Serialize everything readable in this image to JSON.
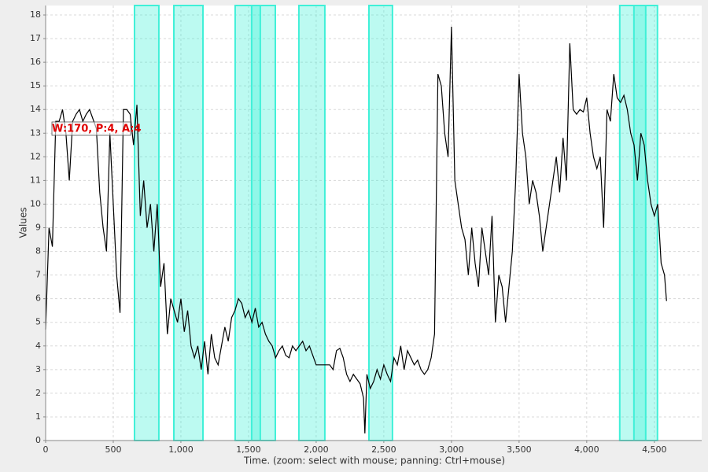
{
  "chart_data": {
    "type": "line",
    "x_label": "Time. (zoom: select with mouse; panning: Ctrl+mouse)",
    "y_label": "Values",
    "annotation": "W:170, P:4, A:4",
    "color": "#000000",
    "highlight_color": "#40f0d8",
    "highlight_ranges": [
      [
        657,
        837
      ],
      [
        948,
        1163
      ],
      [
        1401,
        1587
      ],
      [
        1523,
        1698
      ],
      [
        1872,
        2064
      ],
      [
        2390,
        2564
      ],
      [
        4244,
        4436
      ],
      [
        4349,
        4523
      ]
    ],
    "x": [
      0,
      25,
      50,
      75,
      100,
      125,
      150,
      175,
      200,
      225,
      250,
      275,
      300,
      325,
      350,
      375,
      400,
      425,
      450,
      475,
      500,
      525,
      550,
      575,
      600,
      625,
      650,
      675,
      700,
      725,
      750,
      775,
      800,
      825,
      850,
      875,
      900,
      925,
      950,
      975,
      1000,
      1025,
      1050,
      1075,
      1100,
      1125,
      1150,
      1175,
      1200,
      1225,
      1250,
      1275,
      1300,
      1325,
      1350,
      1375,
      1400,
      1425,
      1450,
      1475,
      1500,
      1525,
      1550,
      1575,
      1600,
      1625,
      1650,
      1675,
      1700,
      1725,
      1750,
      1775,
      1800,
      1825,
      1850,
      1875,
      1900,
      1925,
      1950,
      1975,
      2000,
      2025,
      2050,
      2075,
      2100,
      2125,
      2150,
      2175,
      2200,
      2225,
      2250,
      2275,
      2300,
      2325,
      2350,
      2360,
      2375,
      2400,
      2425,
      2450,
      2475,
      2500,
      2525,
      2550,
      2575,
      2600,
      2625,
      2650,
      2675,
      2700,
      2725,
      2750,
      2775,
      2800,
      2825,
      2850,
      2875,
      2900,
      2925,
      2950,
      2975,
      3000,
      3025,
      3050,
      3075,
      3100,
      3125,
      3150,
      3175,
      3200,
      3225,
      3250,
      3275,
      3300,
      3325,
      3350,
      3375,
      3400,
      3425,
      3450,
      3475,
      3500,
      3525,
      3550,
      3575,
      3600,
      3625,
      3650,
      3675,
      3700,
      3725,
      3750,
      3775,
      3800,
      3825,
      3850,
      3875,
      3900,
      3925,
      3950,
      3975,
      4000,
      4025,
      4050,
      4075,
      4100,
      4125,
      4150,
      4175,
      4200,
      4225,
      4250,
      4275,
      4300,
      4325,
      4350,
      4375,
      4400,
      4425,
      4450,
      4475,
      4500,
      4525,
      4550,
      4575,
      4590
    ],
    "values": [
      4.7,
      9,
      8.2,
      13.5,
      13.5,
      14,
      13,
      11,
      13.5,
      13.8,
      14,
      13.5,
      13.8,
      14,
      13.6,
      13.2,
      10.5,
      9,
      8,
      13,
      10,
      7,
      5.4,
      14,
      14,
      13.8,
      12.5,
      14.2,
      9.5,
      11,
      9,
      10,
      8,
      10,
      6.5,
      7.5,
      4.5,
      6,
      5.5,
      5,
      6,
      4.6,
      5.5,
      4,
      3.5,
      4,
      3,
      4.2,
      2.8,
      4.5,
      3.5,
      3.2,
      4,
      4.8,
      4.2,
      5.2,
      5.5,
      6,
      5.8,
      5.2,
      5.5,
      5,
      5.6,
      4.8,
      5,
      4.5,
      4.2,
      4,
      3.5,
      3.8,
      4,
      3.6,
      3.5,
      4,
      3.8,
      4,
      4.2,
      3.8,
      4,
      3.6,
      3.2,
      3.2,
      3.2,
      3.2,
      3.2,
      3,
      3.8,
      3.9,
      3.5,
      2.8,
      2.5,
      2.8,
      2.6,
      2.4,
      1.8,
      0.3,
      2.8,
      2.2,
      2.5,
      3,
      2.6,
      3.2,
      2.8,
      2.5,
      3.5,
      3.2,
      4,
      3,
      3.8,
      3.5,
      3.2,
      3.4,
      3,
      2.8,
      3,
      3.5,
      4.5,
      15.5,
      15,
      13,
      12,
      17.5,
      11,
      10,
      9,
      8.5,
      7,
      9,
      7.5,
      6.5,
      9,
      8,
      7,
      9.5,
      5,
      7,
      6.5,
      5,
      6.5,
      8,
      11,
      15.5,
      13,
      12,
      10,
      11,
      10.5,
      9.5,
      8,
      9,
      10,
      11,
      12,
      10.5,
      12.8,
      11,
      16.8,
      14,
      13.8,
      14,
      13.9,
      14.5,
      13,
      12,
      11.5,
      12,
      9,
      14,
      13.5,
      15.5,
      14.5,
      14.3,
      14.6,
      14,
      13,
      12.5,
      11,
      13,
      12.5,
      11,
      10,
      9.5,
      10,
      7.5,
      7,
      5.9
    ],
    "xlim": [
      0,
      4850
    ],
    "ylim": [
      0,
      18.4
    ],
    "xticks": [
      0,
      500,
      {
        "value": 1000,
        "label": "1,000"
      },
      {
        "value": 1500,
        "label": "1,500"
      },
      {
        "value": 2000,
        "label": "2,000"
      },
      {
        "value": 2500,
        "label": "2,500"
      },
      {
        "value": 3000,
        "label": "3,000"
      },
      {
        "value": 3500,
        "label": "3,500"
      },
      {
        "value": 4000,
        "label": "4,000"
      },
      {
        "value": 4500,
        "label": "4,500"
      }
    ],
    "yticks": [
      0,
      1,
      2,
      3,
      4,
      5,
      6,
      7,
      8,
      9,
      10,
      11,
      12,
      13,
      14,
      15,
      16,
      17,
      18
    ],
    "grid": true
  }
}
